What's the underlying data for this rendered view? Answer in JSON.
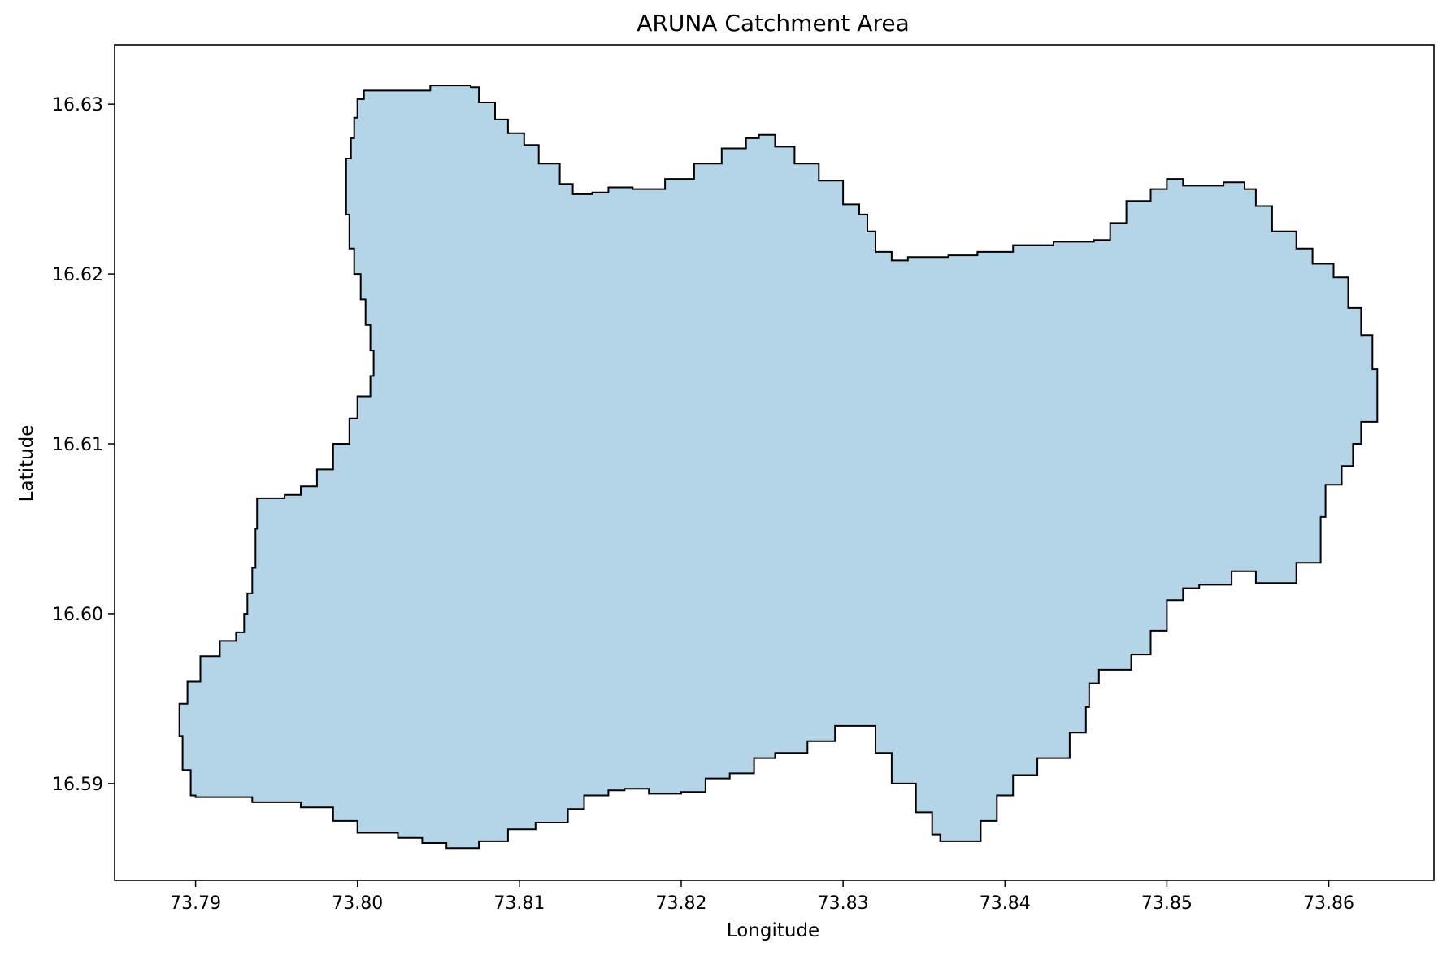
{
  "chart_data": {
    "type": "map",
    "title": "ARUNA Catchment Area",
    "xlabel": "Longitude",
    "ylabel": "Latitude",
    "xlim": [
      73.785,
      73.8665
    ],
    "ylim": [
      16.5843,
      16.6335
    ],
    "xticks": [
      73.79,
      73.8,
      73.81,
      73.82,
      73.83,
      73.84,
      73.85,
      73.86
    ],
    "xtick_labels": [
      "73.79",
      "73.80",
      "73.81",
      "73.82",
      "73.83",
      "73.84",
      "73.85",
      "73.86"
    ],
    "yticks": [
      16.59,
      16.6,
      16.61,
      16.62,
      16.63
    ],
    "ytick_labels": [
      "16.59",
      "16.60",
      "16.61",
      "16.62",
      "16.63"
    ],
    "grid": false,
    "fill_color": "#b4d5e8",
    "edge_color": "#000000",
    "polygon_lonlat": [
      [
        73.8004,
        16.6308
      ],
      [
        73.804,
        16.6308
      ],
      [
        73.8045,
        16.6311
      ],
      [
        73.807,
        16.631
      ],
      [
        73.8075,
        16.6301
      ],
      [
        73.8085,
        16.6291
      ],
      [
        73.8093,
        16.6283
      ],
      [
        73.8103,
        16.6276
      ],
      [
        73.8112,
        16.6265
      ],
      [
        73.8125,
        16.6253
      ],
      [
        73.8133,
        16.6247
      ],
      [
        73.8145,
        16.6248
      ],
      [
        73.8155,
        16.6251
      ],
      [
        73.817,
        16.625
      ],
      [
        73.819,
        16.6256
      ],
      [
        73.8208,
        16.6265
      ],
      [
        73.8225,
        16.6274
      ],
      [
        73.824,
        16.628
      ],
      [
        73.8248,
        16.6282
      ],
      [
        73.8258,
        16.6275
      ],
      [
        73.827,
        16.6265
      ],
      [
        73.8285,
        16.6255
      ],
      [
        73.83,
        16.6241
      ],
      [
        73.831,
        16.6235
      ],
      [
        73.8315,
        16.6225
      ],
      [
        73.832,
        16.6213
      ],
      [
        73.833,
        16.6208
      ],
      [
        73.834,
        16.621
      ],
      [
        73.8365,
        16.6211
      ],
      [
        73.8383,
        16.6213
      ],
      [
        73.8405,
        16.6217
      ],
      [
        73.843,
        16.6219
      ],
      [
        73.8455,
        16.622
      ],
      [
        73.8465,
        16.623
      ],
      [
        73.8475,
        16.6243
      ],
      [
        73.849,
        16.625
      ],
      [
        73.85,
        16.6256
      ],
      [
        73.851,
        16.6252
      ],
      [
        73.8535,
        16.6254
      ],
      [
        73.8548,
        16.625
      ],
      [
        73.8555,
        16.624
      ],
      [
        73.8565,
        16.6225
      ],
      [
        73.858,
        16.6215
      ],
      [
        73.859,
        16.6206
      ],
      [
        73.8603,
        16.6198
      ],
      [
        73.8612,
        16.618
      ],
      [
        73.862,
        16.6164
      ],
      [
        73.8627,
        16.6144
      ],
      [
        73.863,
        16.6127
      ],
      [
        73.863,
        16.6113
      ],
      [
        73.862,
        16.61
      ],
      [
        73.8615,
        16.6087
      ],
      [
        73.8608,
        16.6076
      ],
      [
        73.8598,
        16.6057
      ],
      [
        73.8595,
        16.603
      ],
      [
        73.858,
        16.6018
      ],
      [
        73.8555,
        16.6025
      ],
      [
        73.854,
        16.6017
      ],
      [
        73.852,
        16.6015
      ],
      [
        73.851,
        16.6008
      ],
      [
        73.85,
        16.599
      ],
      [
        73.849,
        16.5976
      ],
      [
        73.8478,
        16.5967
      ],
      [
        73.8458,
        16.5959
      ],
      [
        73.8452,
        16.5945
      ],
      [
        73.845,
        16.593
      ],
      [
        73.844,
        16.5915
      ],
      [
        73.842,
        16.5905
      ],
      [
        73.8405,
        16.5893
      ],
      [
        73.8395,
        16.5878
      ],
      [
        73.8385,
        16.5866
      ],
      [
        73.8375,
        16.5866
      ],
      [
        73.836,
        16.587
      ],
      [
        73.8355,
        16.5883
      ],
      [
        73.8345,
        16.59
      ],
      [
        73.833,
        16.5918
      ],
      [
        73.832,
        16.5934
      ],
      [
        73.8307,
        16.5934
      ],
      [
        73.8295,
        16.5925
      ],
      [
        73.8278,
        16.5918
      ],
      [
        73.8258,
        16.5915
      ],
      [
        73.8245,
        16.5906
      ],
      [
        73.823,
        16.5903
      ],
      [
        73.8215,
        16.5895
      ],
      [
        73.82,
        16.5894
      ],
      [
        73.818,
        16.5897
      ],
      [
        73.8165,
        16.5896
      ],
      [
        73.8155,
        16.5893
      ],
      [
        73.814,
        16.5885
      ],
      [
        73.813,
        16.5877
      ],
      [
        73.811,
        16.5873
      ],
      [
        73.8093,
        16.5866
      ],
      [
        73.8075,
        16.5862
      ],
      [
        73.8055,
        16.5865
      ],
      [
        73.804,
        16.5868
      ],
      [
        73.8025,
        16.5871
      ],
      [
        73.8,
        16.5878
      ],
      [
        73.7985,
        16.5886
      ],
      [
        73.7965,
        16.5889
      ],
      [
        73.7935,
        16.5892
      ],
      [
        73.7915,
        16.5892
      ],
      [
        73.79,
        16.5893
      ],
      [
        73.7897,
        16.5908
      ],
      [
        73.7892,
        16.5928
      ],
      [
        73.789,
        16.5947
      ],
      [
        73.7895,
        16.596
      ],
      [
        73.7903,
        16.5975
      ],
      [
        73.7915,
        16.5984
      ],
      [
        73.7925,
        16.5989
      ],
      [
        73.793,
        16.6
      ],
      [
        73.7932,
        16.6012
      ],
      [
        73.7935,
        16.6027
      ],
      [
        73.7937,
        16.605
      ],
      [
        73.7938,
        16.6068
      ],
      [
        73.7955,
        16.607
      ],
      [
        73.7965,
        16.6075
      ],
      [
        73.7975,
        16.6085
      ],
      [
        73.7985,
        16.61
      ],
      [
        73.7995,
        16.6115
      ],
      [
        73.8,
        16.6128
      ],
      [
        73.8008,
        16.614
      ],
      [
        73.801,
        16.6155
      ],
      [
        73.8008,
        16.617
      ],
      [
        73.8005,
        16.6185
      ],
      [
        73.8002,
        16.62
      ],
      [
        73.7998,
        16.6215
      ],
      [
        73.7995,
        16.6235
      ],
      [
        73.7993,
        16.625
      ],
      [
        73.7993,
        16.6268
      ],
      [
        73.7996,
        16.628
      ],
      [
        73.7998,
        16.6292
      ],
      [
        73.8,
        16.6303
      ]
    ]
  }
}
